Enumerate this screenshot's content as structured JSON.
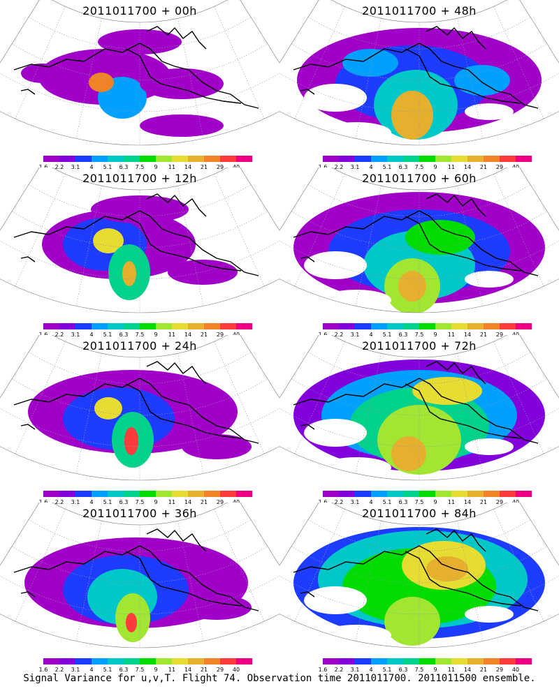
{
  "caption": "Signal Variance for u,v,T. Flight 74. Observation time 2011011700. 2011011500 ensemble.",
  "colorbar": {
    "colors": [
      "#a000c8",
      "#8200dc",
      "#1e3cff",
      "#00a0ff",
      "#00c8c8",
      "#00d28c",
      "#00dc00",
      "#a0e632",
      "#e6dc32",
      "#e6af2d",
      "#f08228",
      "#fa3c3c",
      "#f00082"
    ],
    "labels": [
      "1.6",
      "2.2",
      "3.1",
      "4",
      "5.1",
      "6.3",
      "7.5",
      "9",
      "11",
      "14",
      "21",
      "29",
      "40"
    ]
  },
  "panels": [
    {
      "title": "2011011700 + 00h",
      "intensity": 0
    },
    {
      "title": "2011011700 + 12h",
      "intensity": 1
    },
    {
      "title": "2011011700 + 24h",
      "intensity": 2
    },
    {
      "title": "2011011700 + 36h",
      "intensity": 3
    },
    {
      "title": "2011011700 + 48h",
      "intensity": 4
    },
    {
      "title": "2011011700 + 60h",
      "intensity": 5
    },
    {
      "title": "2011011700 + 72h",
      "intensity": 6
    },
    {
      "title": "2011011700 + 84h",
      "intensity": 7
    }
  ]
}
